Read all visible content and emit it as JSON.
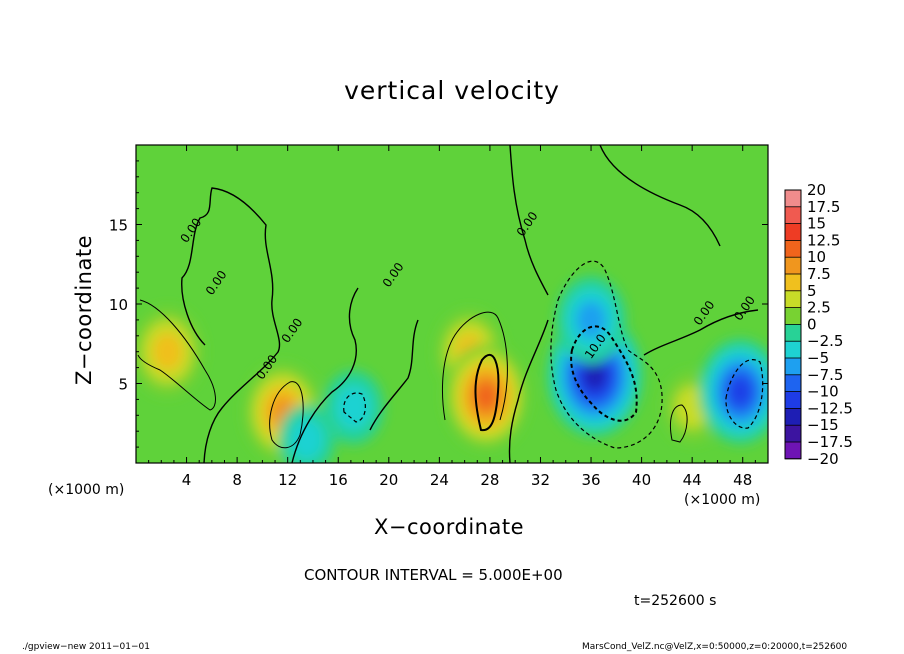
{
  "chart_data": {
    "type": "heatmap",
    "title": "vertical velocity",
    "xlabel": "X−coordinate",
    "ylabel": "Z−coordinate",
    "x_unit": "(×1000 m)",
    "x_ticks": [
      4,
      8,
      12,
      16,
      20,
      24,
      28,
      32,
      36,
      40,
      44,
      48
    ],
    "y_ticks": [
      5,
      10,
      15
    ],
    "xlim": [
      0,
      50
    ],
    "ylim": [
      0,
      20
    ],
    "contour_labels": [
      "0.00",
      "0.00",
      "0.00",
      "0.00",
      "0.00",
      "0.00",
      "0.00",
      "0.00",
      "10.0"
    ],
    "colorbar": {
      "levels": [
        "20",
        "17.5",
        "15",
        "12.5",
        "10",
        "7.5",
        "5",
        "2.5",
        "0",
        "−2.5",
        "−5",
        "−7.5",
        "−10",
        "−12.5",
        "−15",
        "−17.5",
        "−20"
      ],
      "colors": [
        "#f08c8c",
        "#f05a50",
        "#ee3c24",
        "#f0641c",
        "#f0961e",
        "#f0c01e",
        "#c8dc28",
        "#78d232",
        "#2cc83c",
        "#28d296",
        "#1ed2d2",
        "#1ea0f0",
        "#1e64f0",
        "#1e3ce6",
        "#1e1eb4",
        "#3c14a0",
        "#6e14b4"
      ]
    },
    "features": [
      {
        "kind": "updraft",
        "x": 2.5,
        "z": 7.0,
        "peak": 8
      },
      {
        "kind": "updraft",
        "x": 11.6,
        "z": 3.2,
        "peak": 10
      },
      {
        "kind": "updraft",
        "x": 26.4,
        "z": 7.0,
        "peak": 7
      },
      {
        "kind": "updraft",
        "x": 27.7,
        "z": 4.2,
        "peak": 12
      },
      {
        "kind": "updraft",
        "x": 44.0,
        "z": 3.5,
        "peak": 4
      },
      {
        "kind": "downdraft",
        "x": 36.3,
        "z": 5.5,
        "peak": -16
      },
      {
        "kind": "downdraft",
        "x": 36.0,
        "z": 9.0,
        "peak": -8
      },
      {
        "kind": "downdraft",
        "x": 47.8,
        "z": 4.5,
        "peak": -12
      },
      {
        "kind": "downdraft",
        "x": 17.2,
        "z": 3.5,
        "peak": -5
      },
      {
        "kind": "downdraft",
        "x": 13.5,
        "z": 1.5,
        "peak": -4
      }
    ]
  },
  "contour_interval": "CONTOUR INTERVAL = 5.000E+00",
  "time_label": "t=252600 s",
  "footer_left": "./gpview−new  2011−01−01",
  "footer_right": "MarsCond_VelZ.nc@VelZ,x=0:50000,z=0:20000,t=252600"
}
